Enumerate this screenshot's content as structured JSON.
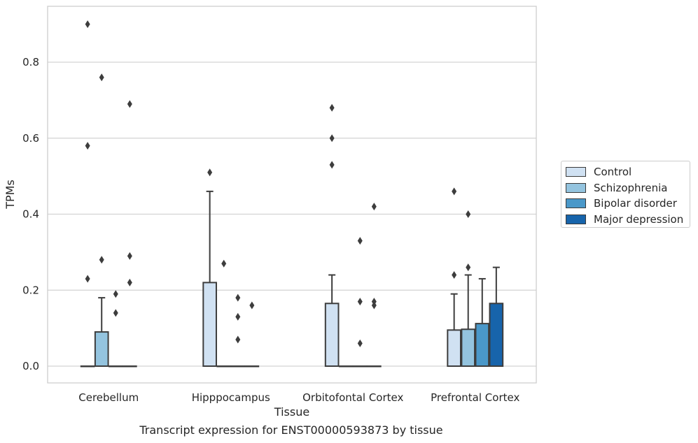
{
  "chart_data": {
    "type": "box",
    "categories": [
      "Cerebellum",
      "Hipppocampus",
      "Orbitofontal Cortex",
      "Prefrontal Cortex"
    ],
    "xlabel": "Tissue",
    "ylabel": "TPMs",
    "caption": "Transcript expression for ENST00000593873 by tissue",
    "ylim": [
      -0.045,
      0.95
    ],
    "yticks": [
      0.0,
      0.2,
      0.4,
      0.6,
      0.8
    ],
    "ytick_labels": [
      "0.0",
      "0.2",
      "0.4",
      "0.6",
      "0.8"
    ],
    "grid": "horizontal",
    "legend_position": "right",
    "series": [
      {
        "name": "Control",
        "color": "#d0e1f2",
        "boxes": [
          {
            "q1": 0,
            "median": 0,
            "q3": 0,
            "whisker_low": 0,
            "whisker_high": 0,
            "outliers": [
              0.9,
              0.58,
              0.23
            ]
          },
          {
            "q1": 0,
            "median": 0,
            "q3": 0.22,
            "whisker_low": 0,
            "whisker_high": 0.46,
            "outliers": [
              0.51
            ]
          },
          {
            "q1": 0,
            "median": 0,
            "q3": 0.165,
            "whisker_low": 0,
            "whisker_high": 0.24,
            "outliers": [
              0.68,
              0.6,
              0.53
            ]
          },
          {
            "q1": 0,
            "median": 0,
            "q3": 0.095,
            "whisker_low": 0,
            "whisker_high": 0.19,
            "outliers": [
              0.46,
              0.24
            ]
          }
        ]
      },
      {
        "name": "Schizophrenia",
        "color": "#94c4df",
        "boxes": [
          {
            "q1": 0,
            "median": 0,
            "q3": 0.09,
            "whisker_low": 0,
            "whisker_high": 0.18,
            "outliers": [
              0.76,
              0.28
            ]
          },
          {
            "q1": 0,
            "median": 0,
            "q3": 0,
            "whisker_low": 0,
            "whisker_high": 0,
            "outliers": [
              0.27
            ]
          },
          {
            "q1": 0,
            "median": 0,
            "q3": 0,
            "whisker_low": 0,
            "whisker_high": 0,
            "outliers": []
          },
          {
            "q1": 0,
            "median": 0,
            "q3": 0.097,
            "whisker_low": 0,
            "whisker_high": 0.24,
            "outliers": [
              0.4,
              0.26
            ]
          }
        ]
      },
      {
        "name": "Bipolar disorder",
        "color": "#4a98c9",
        "boxes": [
          {
            "q1": 0,
            "median": 0,
            "q3": 0,
            "whisker_low": 0,
            "whisker_high": 0,
            "outliers": [
              0.19,
              0.14
            ]
          },
          {
            "q1": 0,
            "median": 0,
            "q3": 0,
            "whisker_low": 0,
            "whisker_high": 0,
            "outliers": [
              0.18,
              0.13,
              0.07
            ]
          },
          {
            "q1": 0,
            "median": 0,
            "q3": 0,
            "whisker_low": 0,
            "whisker_high": 0,
            "outliers": [
              0.33,
              0.17,
              0.06
            ]
          },
          {
            "q1": 0,
            "median": 0,
            "q3": 0.112,
            "whisker_low": 0,
            "whisker_high": 0.23,
            "outliers": []
          }
        ]
      },
      {
        "name": "Major depression",
        "color": "#1764ab",
        "boxes": [
          {
            "q1": 0,
            "median": 0,
            "q3": 0,
            "whisker_low": 0,
            "whisker_high": 0,
            "outliers": [
              0.69,
              0.29,
              0.22
            ]
          },
          {
            "q1": 0,
            "median": 0,
            "q3": 0,
            "whisker_low": 0,
            "whisker_high": 0,
            "outliers": [
              0.16
            ]
          },
          {
            "q1": 0,
            "median": 0,
            "q3": 0,
            "whisker_low": 0,
            "whisker_high": 0,
            "outliers": [
              0.42,
              0.17,
              0.16
            ]
          },
          {
            "q1": 0,
            "median": 0,
            "q3": 0.165,
            "whisker_low": 0,
            "whisker_high": 0.26,
            "outliers": []
          }
        ]
      }
    ]
  }
}
